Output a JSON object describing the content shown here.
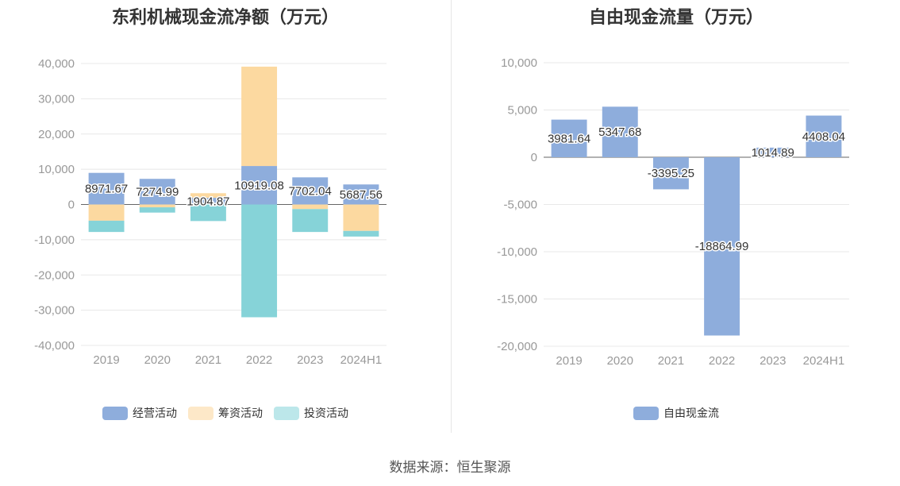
{
  "source_text": "数据来源：恒生聚源",
  "colors": {
    "operating": "#8eaddc",
    "financing": "#fcd9a0",
    "investing": "#86d3d8",
    "free_cash_flow": "#8eaddc",
    "investing_legend": "#bce7ea",
    "financing_legend": "#fde8c8",
    "grid": "#e8e8e8",
    "axis_text": "#999999",
    "label_text": "#333333"
  },
  "chart_data": [
    {
      "type": "bar",
      "stacked": true,
      "title": "东利机械现金流净额（万元）",
      "categories": [
        "2019",
        "2020",
        "2021",
        "2022",
        "2023",
        "2024H1"
      ],
      "ylim": [
        -40000,
        40000
      ],
      "yticks": [
        40000,
        30000,
        20000,
        10000,
        0,
        -10000,
        -20000,
        -30000,
        -40000
      ],
      "ytick_labels": [
        "40,000",
        "30,000",
        "20,000",
        "10,000",
        "0",
        "-10,000",
        "-20,000",
        "-30,000",
        "-40,000"
      ],
      "grid": true,
      "legend_position": "bottom",
      "series": [
        {
          "name": "经营活动",
          "color_key": "operating",
          "values": [
            8971.67,
            7274.99,
            1904.87,
            10919.08,
            7702.04,
            5687.56
          ],
          "labels": [
            "8971.67",
            "7274.99",
            "1904.87",
            "10919.08",
            "7702.04",
            "5687.56"
          ]
        },
        {
          "name": "筹资活动",
          "color_key": "financing",
          "values": [
            -4600,
            -800,
            1300,
            28200,
            -1300,
            -7500
          ]
        },
        {
          "name": "投资活动",
          "color_key": "investing",
          "values": [
            -3200,
            -1500,
            -4700,
            -32000,
            -6500,
            -1600
          ]
        }
      ]
    },
    {
      "type": "bar",
      "title": "自由现金流量（万元）",
      "categories": [
        "2019",
        "2020",
        "2021",
        "2022",
        "2023",
        "2024H1"
      ],
      "ylim": [
        -20000,
        10000
      ],
      "yticks": [
        10000,
        5000,
        0,
        -5000,
        -10000,
        -15000,
        -20000
      ],
      "ytick_labels": [
        "10,000",
        "5,000",
        "0",
        "-5,000",
        "-10,000",
        "-15,000",
        "-20,000"
      ],
      "grid": true,
      "legend_position": "bottom",
      "series": [
        {
          "name": "自由现金流",
          "color_key": "free_cash_flow",
          "values": [
            3981.64,
            5347.68,
            -3395.25,
            -18864.99,
            1014.89,
            4408.04
          ],
          "labels": [
            "3981.64",
            "5347.68",
            "-3395.25",
            "-18864.99",
            "1014.89",
            "4408.04"
          ]
        }
      ]
    }
  ]
}
